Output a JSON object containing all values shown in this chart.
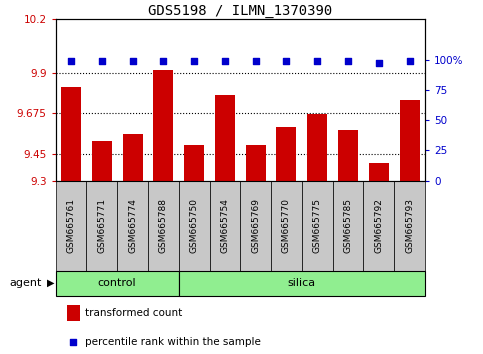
{
  "title": "GDS5198 / ILMN_1370390",
  "samples": [
    "GSM665761",
    "GSM665771",
    "GSM665774",
    "GSM665788",
    "GSM665750",
    "GSM665754",
    "GSM665769",
    "GSM665770",
    "GSM665775",
    "GSM665785",
    "GSM665792",
    "GSM665793"
  ],
  "bar_values": [
    9.82,
    9.52,
    9.56,
    9.92,
    9.5,
    9.78,
    9.5,
    9.6,
    9.67,
    9.58,
    9.4,
    9.75
  ],
  "percentile_values": [
    99,
    99,
    99,
    99,
    99,
    99,
    99,
    99,
    99,
    99,
    97,
    99
  ],
  "bar_color": "#cc0000",
  "dot_color": "#0000cc",
  "ylim_left": [
    9.3,
    10.2
  ],
  "yticks_left": [
    9.3,
    9.45,
    9.675,
    9.9,
    10.2
  ],
  "ylim_right": [
    0,
    133.33
  ],
  "yticks_right": [
    0,
    25,
    50,
    75,
    100
  ],
  "ytick_labels_right": [
    "0",
    "25",
    "50",
    "75",
    "100%"
  ],
  "hgrid_values": [
    9.9,
    9.675,
    9.45
  ],
  "control_samples": 4,
  "silica_samples": 8,
  "control_label": "control",
  "silica_label": "silica",
  "agent_label": "agent",
  "legend_bar_label": "transformed count",
  "legend_dot_label": "percentile rank within the sample",
  "control_color": "#90ee90",
  "silica_color": "#90ee90",
  "group_bar_color": "#c8c8c8",
  "title_fontsize": 10,
  "tick_fontsize": 7.5,
  "label_fontsize": 7.5,
  "bar_width": 0.65
}
